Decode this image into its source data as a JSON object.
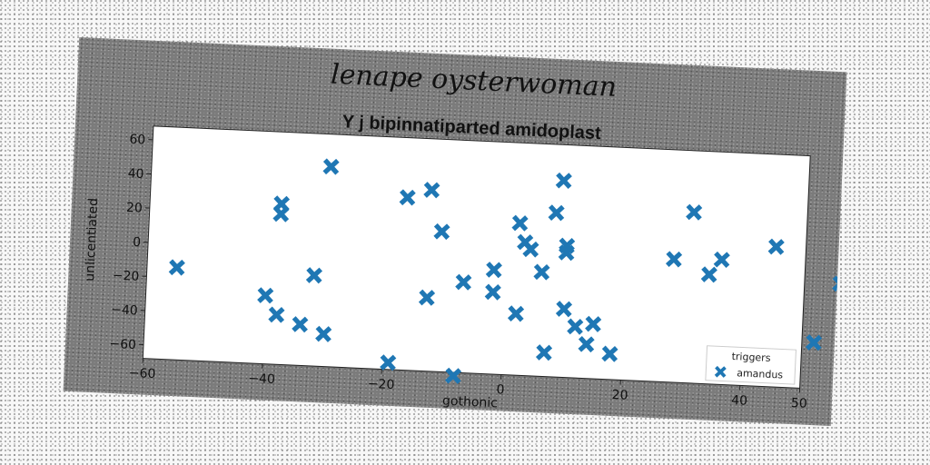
{
  "chart_data": {
    "type": "scatter",
    "suptitle": "lenape oysterwoman",
    "title": "Y j bipinnatiparted amidoplast",
    "xlabel": "gothonic",
    "ylabel": "unlicentiated",
    "xlim": [
      -60,
      50
    ],
    "ylim": [
      -68,
      68
    ],
    "xticks": [
      -60,
      -40,
      -20,
      0,
      20,
      40,
      50
    ],
    "yticks": [
      -60,
      -40,
      -20,
      0,
      20,
      40,
      60
    ],
    "legend": {
      "title": "triggers",
      "placement": "lower-right",
      "entries": [
        "amandus"
      ]
    },
    "grid": false,
    "marker": "X",
    "color": "#1f77b4",
    "series": [
      {
        "name": "amandus",
        "points": [
          [
            -55,
            -14
          ],
          [
            -40,
            -28
          ],
          [
            -38,
            26
          ],
          [
            -38,
            20
          ],
          [
            -38,
            -39
          ],
          [
            -34,
            -44
          ],
          [
            -32,
            -15
          ],
          [
            -30,
            49
          ],
          [
            -30,
            -49
          ],
          [
            -19,
            -64
          ],
          [
            -17,
            33
          ],
          [
            -13,
            38
          ],
          [
            -13,
            -25
          ],
          [
            -11,
            14
          ],
          [
            -7,
            -15
          ],
          [
            -8,
            -70
          ],
          [
            -2,
            -7
          ],
          [
            -2,
            -20
          ],
          [
            2,
            21
          ],
          [
            2,
            -32
          ],
          [
            3,
            10
          ],
          [
            4,
            6
          ],
          [
            6,
            -7
          ],
          [
            7,
            -54
          ],
          [
            8,
            28
          ],
          [
            9,
            47
          ],
          [
            10,
            9
          ],
          [
            10,
            5
          ],
          [
            10,
            -28
          ],
          [
            12,
            -38
          ],
          [
            14,
            -48
          ],
          [
            15,
            -36
          ],
          [
            18,
            -53
          ],
          [
            28,
            4
          ],
          [
            31,
            32
          ],
          [
            34,
            -4
          ],
          [
            36,
            5
          ],
          [
            45,
            14
          ],
          [
            52,
            -41
          ],
          [
            56,
            -6
          ]
        ]
      }
    ]
  }
}
